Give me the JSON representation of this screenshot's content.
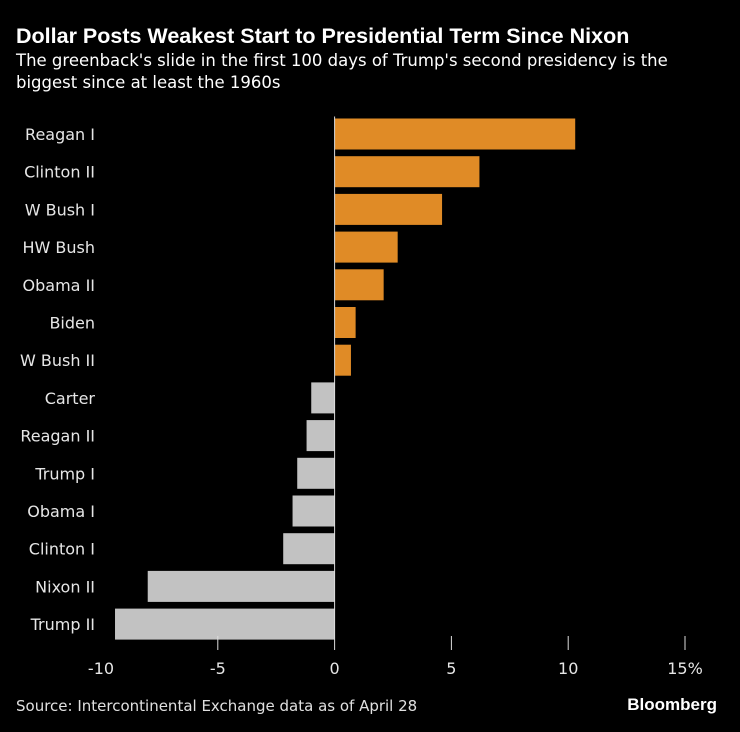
{
  "chart_data": {
    "type": "bar",
    "orientation": "horizontal",
    "title": "Dollar Posts Weakest Start to Presidential Term Since Nixon",
    "subtitle": "The greenback's slide in the first 100 days of Trump's second presidency is the biggest since at least the 1960s",
    "categories": [
      "Reagan I",
      "Clinton II",
      "W Bush I",
      "HW Bush",
      "Obama II",
      "Biden",
      "W Bush II",
      "Carter",
      "Reagan II",
      "Trump I",
      "Obama I",
      "Clinton I",
      "Nixon II",
      "Trump II"
    ],
    "values": [
      10.3,
      6.2,
      4.6,
      2.7,
      2.1,
      0.9,
      0.7,
      -1.0,
      -1.2,
      -1.6,
      -1.8,
      -2.2,
      -8.0,
      -9.4
    ],
    "xlim": [
      -10,
      15
    ],
    "xticks": [
      -10,
      -5,
      0,
      5,
      10,
      15
    ],
    "xtick_labels": [
      "-10",
      "-5",
      "0",
      "5",
      "10",
      "15%"
    ],
    "xlabel": "",
    "ylabel": "",
    "grid": false,
    "colors": {
      "positive": "#e08b26",
      "negative": "#c2c2c2",
      "background": "#000000"
    }
  },
  "footer": {
    "source": "Source: Intercontinental Exchange data as of April 28",
    "brand": "Bloomberg"
  }
}
